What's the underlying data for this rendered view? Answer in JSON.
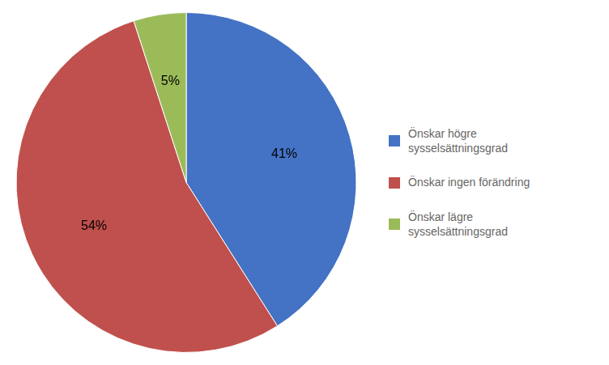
{
  "chart_data": {
    "type": "pie",
    "categories": [
      "Önskar högre\nsysselsättningsgrad",
      "Önskar ingen förändring",
      "Önskar lägre\nsysselsättningsgrad"
    ],
    "values": [
      41,
      54,
      5
    ],
    "value_labels": [
      "41%",
      "54%",
      "5%"
    ],
    "colors": [
      "#4472C4",
      "#C0504D",
      "#9BBB59"
    ],
    "data_labels": true,
    "legend": "right"
  }
}
